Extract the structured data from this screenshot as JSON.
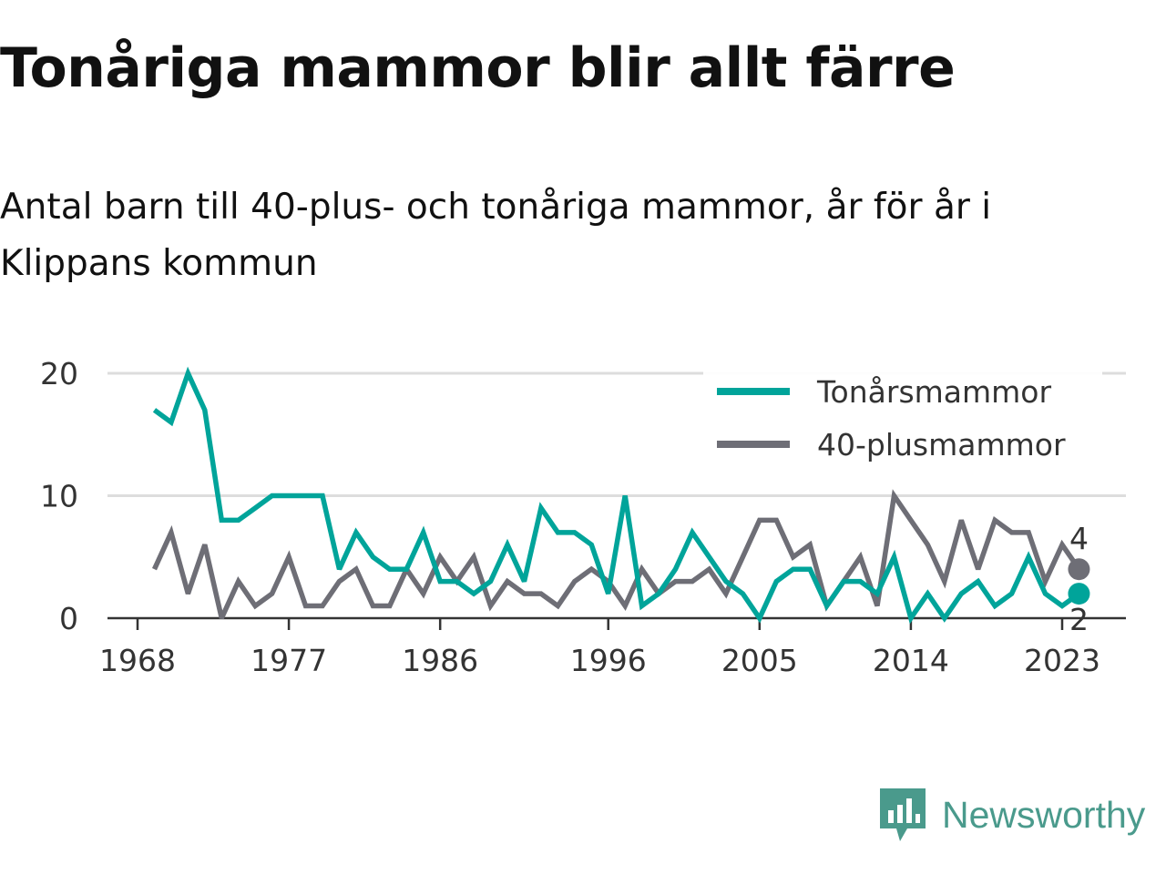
{
  "title": "Tonåriga mammor blir allt färre",
  "subtitle": "Antal barn till 40-plus- och tonåriga mammor, år för år i Klippans kommun",
  "logo": {
    "text": "Newsworthy",
    "icon": "newsworthy-bar-chart-icon"
  },
  "colors": {
    "teen": "#00a49a",
    "forty": "#6e6e76",
    "grid": "#dddddd",
    "axis": "#333333",
    "brand": "#4a9a8c"
  },
  "chart_data": {
    "type": "line",
    "x": [
      1969,
      1970,
      1971,
      1972,
      1973,
      1974,
      1975,
      1976,
      1977,
      1978,
      1979,
      1980,
      1981,
      1982,
      1983,
      1984,
      1985,
      1986,
      1987,
      1988,
      1989,
      1990,
      1991,
      1992,
      1993,
      1994,
      1995,
      1996,
      1997,
      1998,
      1999,
      2000,
      2001,
      2002,
      2003,
      2004,
      2005,
      2006,
      2007,
      2008,
      2009,
      2010,
      2011,
      2012,
      2013,
      2014,
      2015,
      2016,
      2017,
      2018,
      2019,
      2020,
      2021,
      2022,
      2023,
      2024
    ],
    "series": [
      {
        "name": "Tonårsmammor",
        "color": "#00a49a",
        "values": [
          17,
          16,
          20,
          17,
          8,
          8,
          9,
          10,
          10,
          10,
          10,
          4,
          7,
          5,
          4,
          4,
          7,
          3,
          3,
          2,
          3,
          6,
          3,
          9,
          7,
          7,
          6,
          2,
          10,
          1,
          2,
          4,
          7,
          5,
          3,
          2,
          0,
          3,
          4,
          4,
          1,
          3,
          3,
          2,
          5,
          0,
          2,
          0,
          2,
          3,
          1,
          2,
          5,
          2,
          1,
          2
        ]
      },
      {
        "name": "40-plusmammor",
        "color": "#6e6e76",
        "values": [
          4,
          7,
          2,
          6,
          0,
          3,
          1,
          2,
          5,
          1,
          1,
          3,
          4,
          1,
          1,
          4,
          2,
          5,
          3,
          5,
          1,
          3,
          2,
          2,
          1,
          3,
          4,
          3,
          1,
          4,
          2,
          3,
          3,
          4,
          2,
          5,
          8,
          8,
          5,
          6,
          1,
          3,
          5,
          1,
          10,
          8,
          6,
          3,
          8,
          4,
          8,
          7,
          7,
          3,
          6,
          4
        ]
      }
    ],
    "x_ticks": [
      "1968",
      "1977",
      "1986",
      "1996",
      "2005",
      "2014",
      "2023"
    ],
    "y_ticks": [
      "0",
      "10",
      "20"
    ],
    "ylim": [
      0,
      20
    ],
    "end_labels": [
      "4",
      "2"
    ],
    "grid": true,
    "legend_position": "top-right"
  }
}
